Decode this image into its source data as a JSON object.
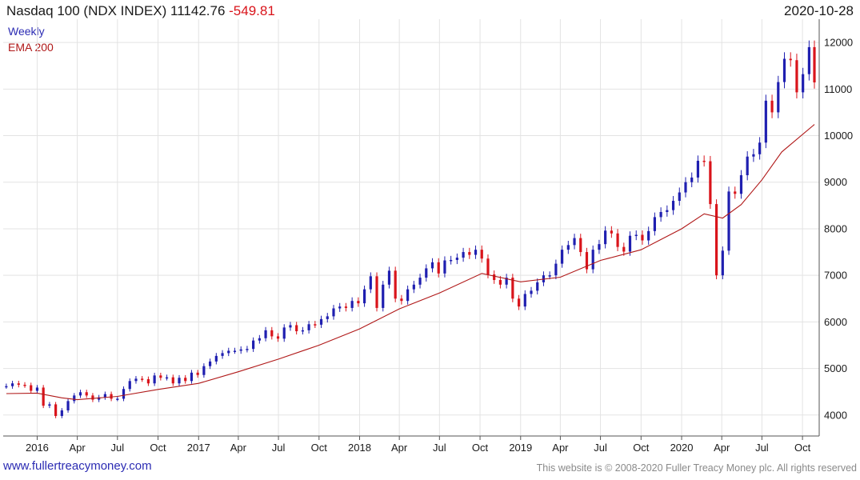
{
  "header": {
    "title": "Nasdaq 100 (NDX INDEX) 11142.76",
    "change": "-549.81",
    "date": "2020-10-28"
  },
  "legend": {
    "weekly": "Weekly",
    "ema": "EMA 200"
  },
  "footer": {
    "site": "www.fullertreacymoney.com",
    "copyright": "This website is © 2008-2020 Fuller Treacy Money plc. All rights reserved"
  },
  "colors": {
    "up": "#1f1fb0",
    "down": "#d9141b",
    "ema": "#b01818",
    "grid": "#e3e3e3",
    "axis": "#555555"
  },
  "chart_data": {
    "type": "line",
    "ylim": [
      3550,
      12500
    ],
    "y_ticks": [
      4000,
      5000,
      6000,
      7000,
      8000,
      9000,
      10000,
      11000,
      12000
    ],
    "x_tick_labels": [
      "2016",
      "Apr",
      "Jul",
      "Oct",
      "2017",
      "Apr",
      "Jul",
      "Oct",
      "2018",
      "Apr",
      "Jul",
      "Oct",
      "2019",
      "Apr",
      "Jul",
      "Oct",
      "2020",
      "Apr",
      "Jul",
      "Oct"
    ],
    "x_range": [
      "2015-10-16",
      "2020-10-28"
    ],
    "grid": true,
    "series": [
      {
        "name": "Weekly",
        "kind": "close",
        "points": [
          [
            "2015-10-23",
            4620
          ],
          [
            "2015-11-06",
            4680
          ],
          [
            "2015-11-20",
            4650
          ],
          [
            "2015-12-04",
            4640
          ],
          [
            "2015-12-18",
            4520
          ],
          [
            "2016-01-01",
            4590
          ],
          [
            "2016-01-15",
            4200
          ],
          [
            "2016-01-29",
            4230
          ],
          [
            "2016-02-12",
            3980
          ],
          [
            "2016-02-26",
            4100
          ],
          [
            "2016-03-11",
            4300
          ],
          [
            "2016-03-25",
            4420
          ],
          [
            "2016-04-08",
            4490
          ],
          [
            "2016-04-22",
            4420
          ],
          [
            "2016-05-06",
            4330
          ],
          [
            "2016-05-20",
            4380
          ],
          [
            "2016-06-03",
            4450
          ],
          [
            "2016-06-17",
            4350
          ],
          [
            "2016-07-01",
            4350
          ],
          [
            "2016-07-15",
            4560
          ],
          [
            "2016-07-29",
            4730
          ],
          [
            "2016-08-12",
            4780
          ],
          [
            "2016-08-26",
            4770
          ],
          [
            "2016-09-09",
            4680
          ],
          [
            "2016-09-23",
            4850
          ],
          [
            "2016-10-07",
            4800
          ],
          [
            "2016-10-21",
            4810
          ],
          [
            "2016-11-04",
            4680
          ],
          [
            "2016-11-18",
            4800
          ],
          [
            "2016-12-02",
            4730
          ],
          [
            "2016-12-16",
            4910
          ],
          [
            "2016-12-30",
            4860
          ],
          [
            "2017-01-13",
            5050
          ],
          [
            "2017-01-27",
            5150
          ],
          [
            "2017-02-10",
            5270
          ],
          [
            "2017-02-24",
            5330
          ],
          [
            "2017-03-10",
            5380
          ],
          [
            "2017-03-24",
            5380
          ],
          [
            "2017-04-07",
            5410
          ],
          [
            "2017-04-21",
            5420
          ],
          [
            "2017-05-05",
            5600
          ],
          [
            "2017-05-19",
            5650
          ],
          [
            "2017-06-02",
            5820
          ],
          [
            "2017-06-16",
            5690
          ],
          [
            "2017-06-30",
            5640
          ],
          [
            "2017-07-14",
            5880
          ],
          [
            "2017-07-28",
            5930
          ],
          [
            "2017-08-11",
            5800
          ],
          [
            "2017-08-25",
            5820
          ],
          [
            "2017-09-08",
            5950
          ],
          [
            "2017-09-22",
            5940
          ],
          [
            "2017-10-06",
            6060
          ],
          [
            "2017-10-20",
            6120
          ],
          [
            "2017-11-03",
            6290
          ],
          [
            "2017-11-17",
            6330
          ],
          [
            "2017-12-01",
            6300
          ],
          [
            "2017-12-15",
            6450
          ],
          [
            "2017-12-29",
            6400
          ],
          [
            "2018-01-12",
            6700
          ],
          [
            "2018-01-26",
            6980
          ],
          [
            "2018-02-09",
            6300
          ],
          [
            "2018-02-23",
            6800
          ],
          [
            "2018-03-09",
            7100
          ],
          [
            "2018-03-23",
            6500
          ],
          [
            "2018-04-06",
            6450
          ],
          [
            "2018-04-20",
            6700
          ],
          [
            "2018-05-04",
            6800
          ],
          [
            "2018-05-18",
            6950
          ],
          [
            "2018-06-01",
            7150
          ],
          [
            "2018-06-15",
            7280
          ],
          [
            "2018-06-29",
            7040
          ],
          [
            "2018-07-13",
            7320
          ],
          [
            "2018-07-27",
            7330
          ],
          [
            "2018-08-10",
            7380
          ],
          [
            "2018-08-24",
            7500
          ],
          [
            "2018-09-07",
            7440
          ],
          [
            "2018-09-21",
            7550
          ],
          [
            "2018-10-05",
            7360
          ],
          [
            "2018-10-19",
            7020
          ],
          [
            "2018-11-02",
            6900
          ],
          [
            "2018-11-16",
            6800
          ],
          [
            "2018-11-30",
            6950
          ],
          [
            "2018-12-14",
            6500
          ],
          [
            "2018-12-28",
            6330
          ],
          [
            "2019-01-11",
            6600
          ],
          [
            "2019-01-25",
            6670
          ],
          [
            "2019-02-08",
            6850
          ],
          [
            "2019-02-22",
            7000
          ],
          [
            "2019-03-08",
            7000
          ],
          [
            "2019-03-22",
            7250
          ],
          [
            "2019-04-05",
            7550
          ],
          [
            "2019-04-19",
            7650
          ],
          [
            "2019-05-03",
            7800
          ],
          [
            "2019-05-17",
            7500
          ],
          [
            "2019-05-31",
            7130
          ],
          [
            "2019-06-14",
            7550
          ],
          [
            "2019-06-28",
            7670
          ],
          [
            "2019-07-12",
            7960
          ],
          [
            "2019-07-26",
            7900
          ],
          [
            "2019-08-09",
            7610
          ],
          [
            "2019-08-23",
            7510
          ],
          [
            "2019-09-06",
            7850
          ],
          [
            "2019-09-20",
            7870
          ],
          [
            "2019-10-04",
            7750
          ],
          [
            "2019-10-18",
            7950
          ],
          [
            "2019-11-01",
            8250
          ],
          [
            "2019-11-15",
            8360
          ],
          [
            "2019-11-29",
            8400
          ],
          [
            "2019-12-13",
            8600
          ],
          [
            "2019-12-27",
            8780
          ],
          [
            "2020-01-10",
            9000
          ],
          [
            "2020-01-24",
            9100
          ],
          [
            "2020-02-07",
            9460
          ],
          [
            "2020-02-21",
            9450
          ],
          [
            "2020-03-06",
            8530
          ],
          [
            "2020-03-20",
            7000
          ],
          [
            "2020-04-03",
            7530
          ],
          [
            "2020-04-17",
            8800
          ],
          [
            "2020-05-01",
            8750
          ],
          [
            "2020-05-15",
            9150
          ],
          [
            "2020-05-29",
            9550
          ],
          [
            "2020-06-12",
            9600
          ],
          [
            "2020-06-26",
            9850
          ],
          [
            "2020-07-10",
            10750
          ],
          [
            "2020-07-24",
            10500
          ],
          [
            "2020-08-07",
            11150
          ],
          [
            "2020-08-21",
            11650
          ],
          [
            "2020-09-04",
            11620
          ],
          [
            "2020-09-18",
            10930
          ],
          [
            "2020-10-02",
            11320
          ],
          [
            "2020-10-16",
            11900
          ],
          [
            "2020-10-28",
            11143
          ]
        ]
      },
      {
        "name": "EMA 200",
        "kind": "line",
        "points": [
          [
            "2015-10-23",
            4460
          ],
          [
            "2016-01-01",
            4470
          ],
          [
            "2016-02-26",
            4370
          ],
          [
            "2016-04-01",
            4330
          ],
          [
            "2016-07-01",
            4400
          ],
          [
            "2016-10-01",
            4550
          ],
          [
            "2017-01-01",
            4680
          ],
          [
            "2017-04-01",
            4930
          ],
          [
            "2017-07-01",
            5200
          ],
          [
            "2017-10-01",
            5500
          ],
          [
            "2018-01-01",
            5850
          ],
          [
            "2018-04-01",
            6280
          ],
          [
            "2018-07-01",
            6620
          ],
          [
            "2018-10-05",
            7040
          ],
          [
            "2019-01-01",
            6860
          ],
          [
            "2019-04-01",
            6960
          ],
          [
            "2019-07-01",
            7320
          ],
          [
            "2019-10-01",
            7550
          ],
          [
            "2020-01-01",
            8000
          ],
          [
            "2020-02-21",
            8320
          ],
          [
            "2020-04-03",
            8230
          ],
          [
            "2020-05-15",
            8520
          ],
          [
            "2020-07-01",
            9050
          ],
          [
            "2020-08-15",
            9650
          ],
          [
            "2020-10-28",
            10240
          ]
        ]
      }
    ]
  }
}
